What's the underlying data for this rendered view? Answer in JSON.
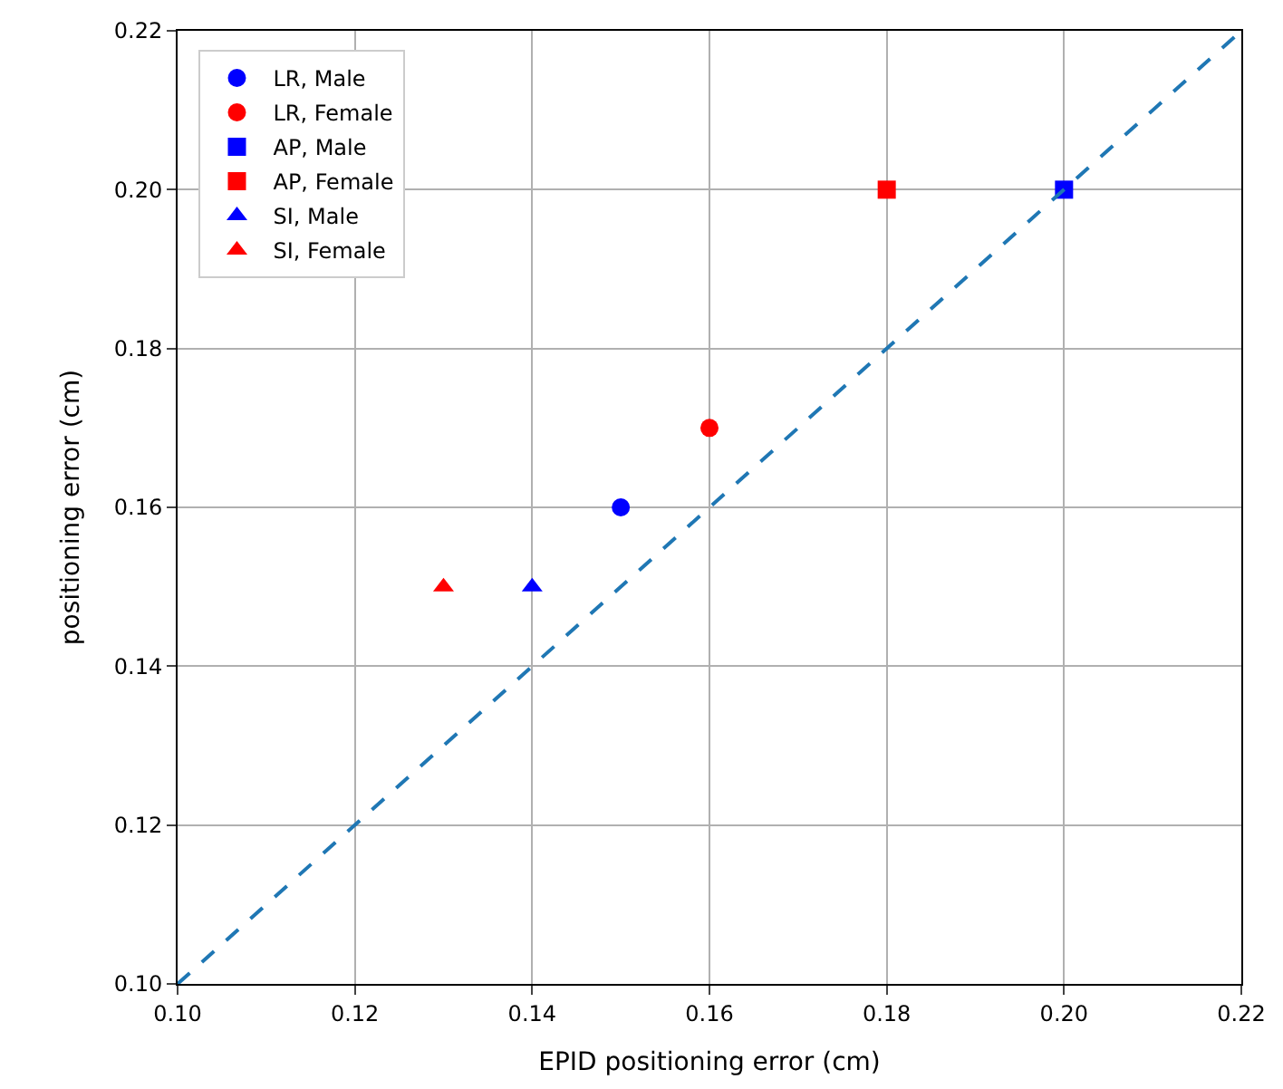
{
  "chart_data": {
    "type": "scatter",
    "xlabel": "EPID positioning error (cm)",
    "ylabel": "positioning error (cm)",
    "xlim": [
      0.1,
      0.22
    ],
    "ylim": [
      0.1,
      0.22
    ],
    "xticks": [
      {
        "value": 0.1,
        "label": "0.10"
      },
      {
        "value": 0.12,
        "label": "0.12"
      },
      {
        "value": 0.14,
        "label": "0.14"
      },
      {
        "value": 0.16,
        "label": "0.16"
      },
      {
        "value": 0.18,
        "label": "0.18"
      },
      {
        "value": 0.2,
        "label": "0.20"
      },
      {
        "value": 0.22,
        "label": "0.22"
      }
    ],
    "yticks": [
      {
        "value": 0.1,
        "label": "0.10"
      },
      {
        "value": 0.12,
        "label": "0.12"
      },
      {
        "value": 0.14,
        "label": "0.14"
      },
      {
        "value": 0.16,
        "label": "0.16"
      },
      {
        "value": 0.18,
        "label": "0.18"
      },
      {
        "value": 0.2,
        "label": "0.20"
      },
      {
        "value": 0.22,
        "label": "0.22"
      }
    ],
    "grid": true,
    "legend": "top left",
    "series": [
      {
        "name": "LR, Male",
        "color": "#0000ff",
        "marker": "circle",
        "x": [
          0.15
        ],
        "values": [
          0.16
        ]
      },
      {
        "name": "LR, Female",
        "color": "#ff0000",
        "marker": "circle",
        "x": [
          0.16
        ],
        "values": [
          0.17
        ]
      },
      {
        "name": "AP, Male",
        "color": "#0000ff",
        "marker": "square",
        "x": [
          0.2
        ],
        "values": [
          0.2
        ]
      },
      {
        "name": "AP, Female",
        "color": "#ff0000",
        "marker": "square",
        "x": [
          0.18
        ],
        "values": [
          0.2
        ]
      },
      {
        "name": "SI, Male",
        "color": "#0000ff",
        "marker": "triangle",
        "x": [
          0.14
        ],
        "values": [
          0.15
        ]
      },
      {
        "name": "SI, Female",
        "color": "#ff0000",
        "marker": "triangle",
        "x": [
          0.13
        ],
        "values": [
          0.15
        ]
      },
      {
        "type": "line",
        "color": "#1f77b4",
        "line_style": "dashed",
        "marker": "none",
        "x": [
          0.1,
          0.22
        ],
        "values": [
          0.1,
          0.22
        ]
      }
    ]
  }
}
